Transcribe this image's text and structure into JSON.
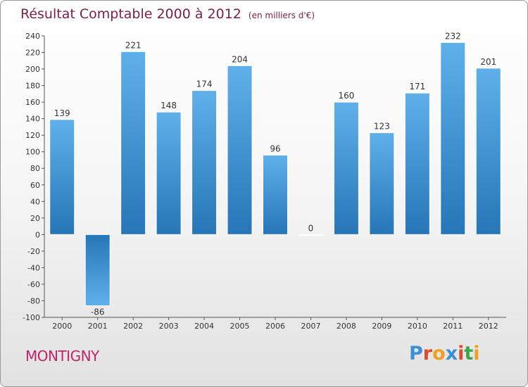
{
  "title": "Résultat Comptable 2000 à 2012",
  "unit": "(en milliers d'€)",
  "commune": "MONTIGNY",
  "brand": "Proxiti",
  "colors": {
    "title": "#7a1f4a",
    "commune": "#c0246a",
    "bar_top": "#5fb0ea",
    "bar_bottom": "#2676b8",
    "logo": [
      "#3a8fd6",
      "#e04a2a",
      "#f0a020",
      "#3a8fd6",
      "#e04a2a",
      "#3aa64a",
      "#f0a020"
    ]
  },
  "chart_data": {
    "type": "bar",
    "categories": [
      "2000",
      "2001",
      "2002",
      "2003",
      "2004",
      "2005",
      "2006",
      "2007",
      "2008",
      "2009",
      "2010",
      "2011",
      "2012"
    ],
    "values": [
      139,
      -86,
      221,
      148,
      174,
      204,
      96,
      0,
      160,
      123,
      171,
      232,
      201
    ],
    "ylim": [
      -100,
      240
    ],
    "yticks": [
      -100,
      -80,
      -60,
      -40,
      -20,
      0,
      20,
      40,
      60,
      80,
      100,
      120,
      140,
      160,
      180,
      200,
      220,
      240
    ],
    "grid": false,
    "legend": "none"
  }
}
